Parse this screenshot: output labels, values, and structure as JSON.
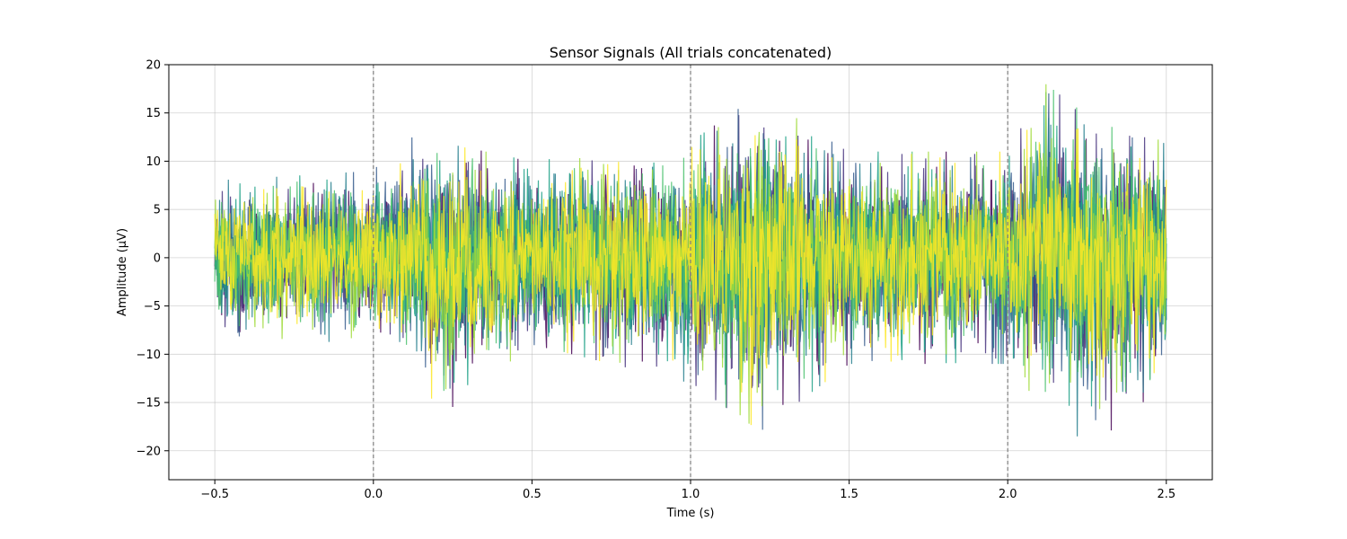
{
  "chart_data": {
    "type": "line",
    "title": "Sensor Signals (All trials concatenated)",
    "xlabel": "Time (s)",
    "ylabel": "Amplitude (µV)",
    "xlim": [
      -0.645,
      2.645
    ],
    "ylim": [
      -23,
      20
    ],
    "x_ticks": [
      -0.5,
      0.0,
      0.5,
      1.0,
      1.5,
      2.0,
      2.5
    ],
    "x_tick_labels": [
      "−0.5",
      "0.0",
      "0.5",
      "1.0",
      "1.5",
      "2.0",
      "2.5"
    ],
    "y_ticks": [
      -20,
      -15,
      -10,
      -5,
      0,
      5,
      10,
      15,
      20
    ],
    "y_tick_labels": [
      "−20",
      "−15",
      "−10",
      "−5",
      "0",
      "5",
      "10",
      "15",
      "20"
    ],
    "grid": true,
    "x_range": [
      -0.5,
      2.5
    ],
    "event_markers": [
      0.0,
      1.0,
      2.0
    ],
    "event_marker_style": "dashed",
    "event_marker_color": "#808080",
    "colormap": "viridis",
    "series_colors": [
      "#440154",
      "#46327e",
      "#365c8d",
      "#277f8e",
      "#1fa187",
      "#4ac16d",
      "#a0da39",
      "#fde725"
    ],
    "amplitude_envelope": [
      {
        "t": -0.5,
        "min": -8,
        "max": 8
      },
      {
        "t": 0.0,
        "min": -9,
        "max": 9
      },
      {
        "t": 0.12,
        "min": -10,
        "max": 14.5
      },
      {
        "t": 0.21,
        "min": -16.5,
        "max": 12
      },
      {
        "t": 0.5,
        "min": -9,
        "max": 10
      },
      {
        "t": 1.0,
        "min": -13,
        "max": 12
      },
      {
        "t": 1.22,
        "min": -18,
        "max": 17
      },
      {
        "t": 1.5,
        "min": -11,
        "max": 11
      },
      {
        "t": 2.0,
        "min": -11,
        "max": 11
      },
      {
        "t": 2.12,
        "min": -16,
        "max": 18
      },
      {
        "t": 2.28,
        "min": -21,
        "max": 14
      },
      {
        "t": 2.5,
        "min": -12,
        "max": 12
      }
    ]
  }
}
